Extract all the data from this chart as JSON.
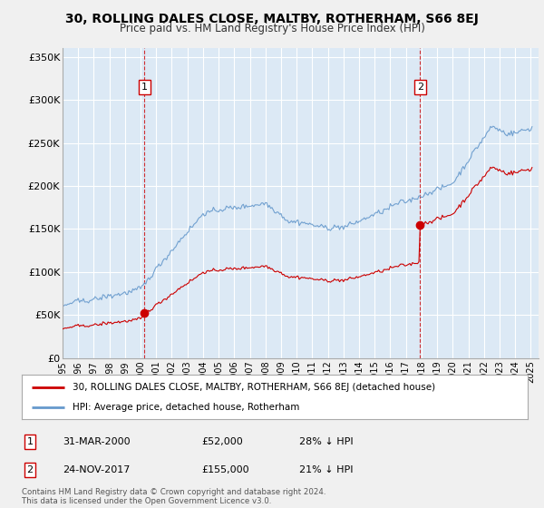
{
  "title": "30, ROLLING DALES CLOSE, MALTBY, ROTHERHAM, S66 8EJ",
  "subtitle": "Price paid vs. HM Land Registry's House Price Index (HPI)",
  "property_label": "30, ROLLING DALES CLOSE, MALTBY, ROTHERHAM, S66 8EJ (detached house)",
  "hpi_label": "HPI: Average price, detached house, Rotherham",
  "property_color": "#cc0000",
  "hpi_color": "#6699cc",
  "annotation1_label": "1",
  "annotation1_date": "31-MAR-2000",
  "annotation1_price": "£52,000",
  "annotation1_hpi": "28% ↓ HPI",
  "annotation2_label": "2",
  "annotation2_date": "24-NOV-2017",
  "annotation2_price": "£155,000",
  "annotation2_hpi": "21% ↓ HPI",
  "footer": "Contains HM Land Registry data © Crown copyright and database right 2024.\nThis data is licensed under the Open Government Licence v3.0.",
  "ylim": [
    0,
    360000
  ],
  "yticks": [
    0,
    50000,
    100000,
    150000,
    200000,
    250000,
    300000,
    350000
  ],
  "ytick_labels": [
    "£0",
    "£50K",
    "£100K",
    "£150K",
    "£200K",
    "£250K",
    "£300K",
    "£350K"
  ],
  "background_color": "#f0f0f0",
  "plot_bg_color": "#dce9f5",
  "grid_color": "#ffffff",
  "marker1_year": 2000.25,
  "marker1_value": 52000,
  "marker2_year": 2017.9,
  "marker2_value": 155000,
  "sale1_year_idx": 63,
  "sale2_year_idx": 275
}
